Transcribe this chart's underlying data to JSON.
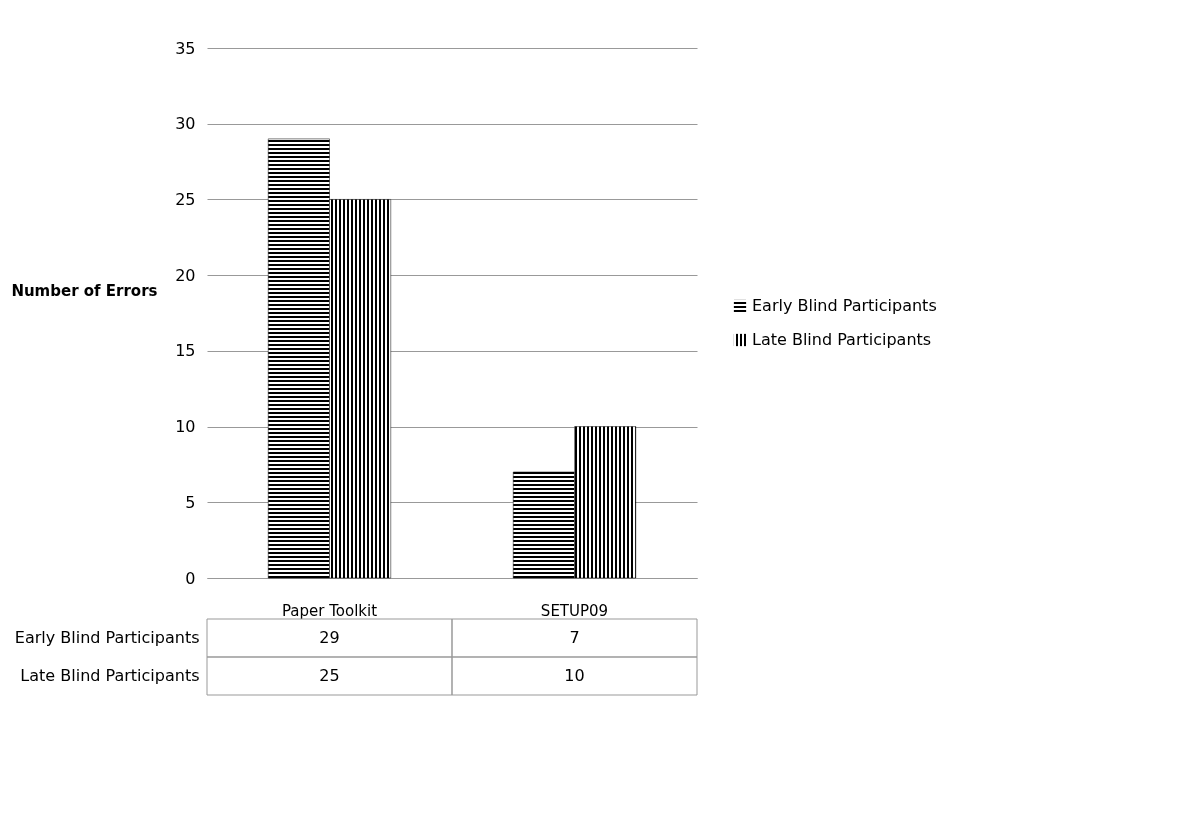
{
  "chart_data": {
    "type": "bar",
    "ylabel": "Number of Errors",
    "categories": [
      "Paper Toolkit",
      "SETUP09"
    ],
    "series": [
      {
        "name": "Early Blind Participants",
        "color": "#000000",
        "values": [
          29,
          7
        ]
      },
      {
        "name": "Late Blind Participants",
        "color": "#000000",
        "values": [
          25,
          10
        ]
      }
    ],
    "ylim": [
      0,
      35
    ],
    "yticks": [
      0,
      5,
      10,
      15,
      20,
      25,
      30,
      35
    ],
    "grid": "y",
    "legend": "right",
    "data_labels": true
  }
}
